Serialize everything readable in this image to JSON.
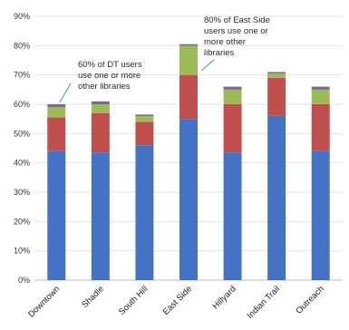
{
  "chart_data": {
    "type": "bar",
    "stacked": true,
    "categories": [
      "Downtown",
      "Shadle",
      "South Hill",
      "East Side",
      "Hillyard",
      "Indian Trail",
      "Outreach"
    ],
    "series": [
      {
        "values": [
          44,
          43.5,
          46,
          55,
          43.5,
          56,
          44
        ],
        "color": "#4472C4"
      },
      {
        "values": [
          11.5,
          13.5,
          8,
          15,
          16.5,
          13,
          16
        ],
        "color": "#C0504D"
      },
      {
        "values": [
          3.5,
          3,
          2,
          10,
          5,
          1.5,
          5
        ],
        "color": "#9BBB59"
      },
      {
        "values": [
          1,
          1,
          0.5,
          0.5,
          1,
          0.5,
          1
        ],
        "color": "#8064A2"
      }
    ],
    "ylim": [
      0,
      90
    ],
    "yticks": [
      "0%",
      "10%",
      "20%",
      "30%",
      "40%",
      "50%",
      "60%",
      "70%",
      "80%",
      "90%"
    ],
    "grid": true,
    "annotations": [
      {
        "category": "Downtown",
        "lines": [
          "60% of DT users",
          "use one or more",
          "other libraries"
        ]
      },
      {
        "category": "East Side",
        "lines": [
          "80% of East Side",
          "users use one or",
          "more other",
          "libraries"
        ]
      }
    ]
  }
}
